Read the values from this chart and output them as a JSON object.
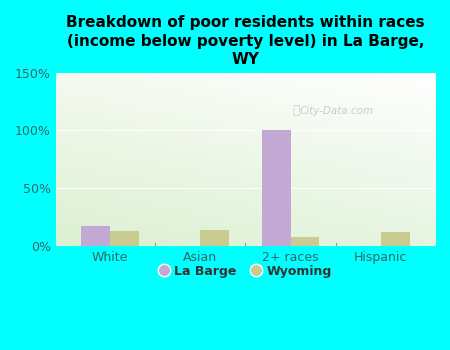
{
  "title": "Breakdown of poor residents within races\n(income below poverty level) in La Barge,\nWY",
  "categories": [
    "White",
    "Asian",
    "2+ races",
    "Hispanic"
  ],
  "la_barge_values": [
    17,
    0,
    100,
    0
  ],
  "wyoming_values": [
    13,
    14,
    8,
    12
  ],
  "la_barge_color": "#c4a8d4",
  "wyoming_color": "#c8cc90",
  "background_color": "#00ffff",
  "ylim": [
    0,
    150
  ],
  "yticks": [
    0,
    50,
    100,
    150
  ],
  "ytick_labels": [
    "0%",
    "50%",
    "100%",
    "150%"
  ],
  "bar_width": 0.32,
  "watermark": "City-Data.com",
  "legend_labels": [
    "La Barge",
    "Wyoming"
  ],
  "tick_color": "#336666",
  "title_fontsize": 11
}
